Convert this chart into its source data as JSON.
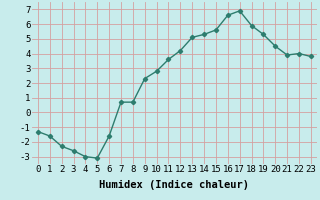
{
  "x": [
    0,
    1,
    2,
    3,
    4,
    5,
    6,
    7,
    8,
    9,
    10,
    11,
    12,
    13,
    14,
    15,
    16,
    17,
    18,
    19,
    20,
    21,
    22,
    23
  ],
  "y": [
    -1.3,
    -1.6,
    -2.3,
    -2.6,
    -3.0,
    -3.1,
    -1.6,
    0.7,
    0.7,
    2.3,
    2.8,
    3.6,
    4.2,
    5.1,
    5.3,
    5.6,
    6.6,
    6.9,
    5.9,
    5.3,
    4.5,
    3.9,
    4.0,
    3.8
  ],
  "line_color": "#2d7d6e",
  "marker": "D",
  "marker_size": 2.2,
  "bg_color": "#c8ecec",
  "grid_color": "#d4a0a0",
  "xlim": [
    -0.5,
    23.5
  ],
  "ylim": [
    -3.5,
    7.5
  ],
  "xtick_labels": [
    "0",
    "1",
    "2",
    "3",
    "4",
    "5",
    "6",
    "7",
    "8",
    "9",
    "10",
    "11",
    "12",
    "13",
    "14",
    "15",
    "16",
    "17",
    "18",
    "19",
    "20",
    "21",
    "22",
    "23"
  ],
  "yticks": [
    -3,
    -2,
    -1,
    0,
    1,
    2,
    3,
    4,
    5,
    6,
    7
  ],
  "xlabel": "Humidex (Indice chaleur)",
  "xlabel_fontsize": 7.5,
  "tick_fontsize": 6.5,
  "line_width": 1.0
}
